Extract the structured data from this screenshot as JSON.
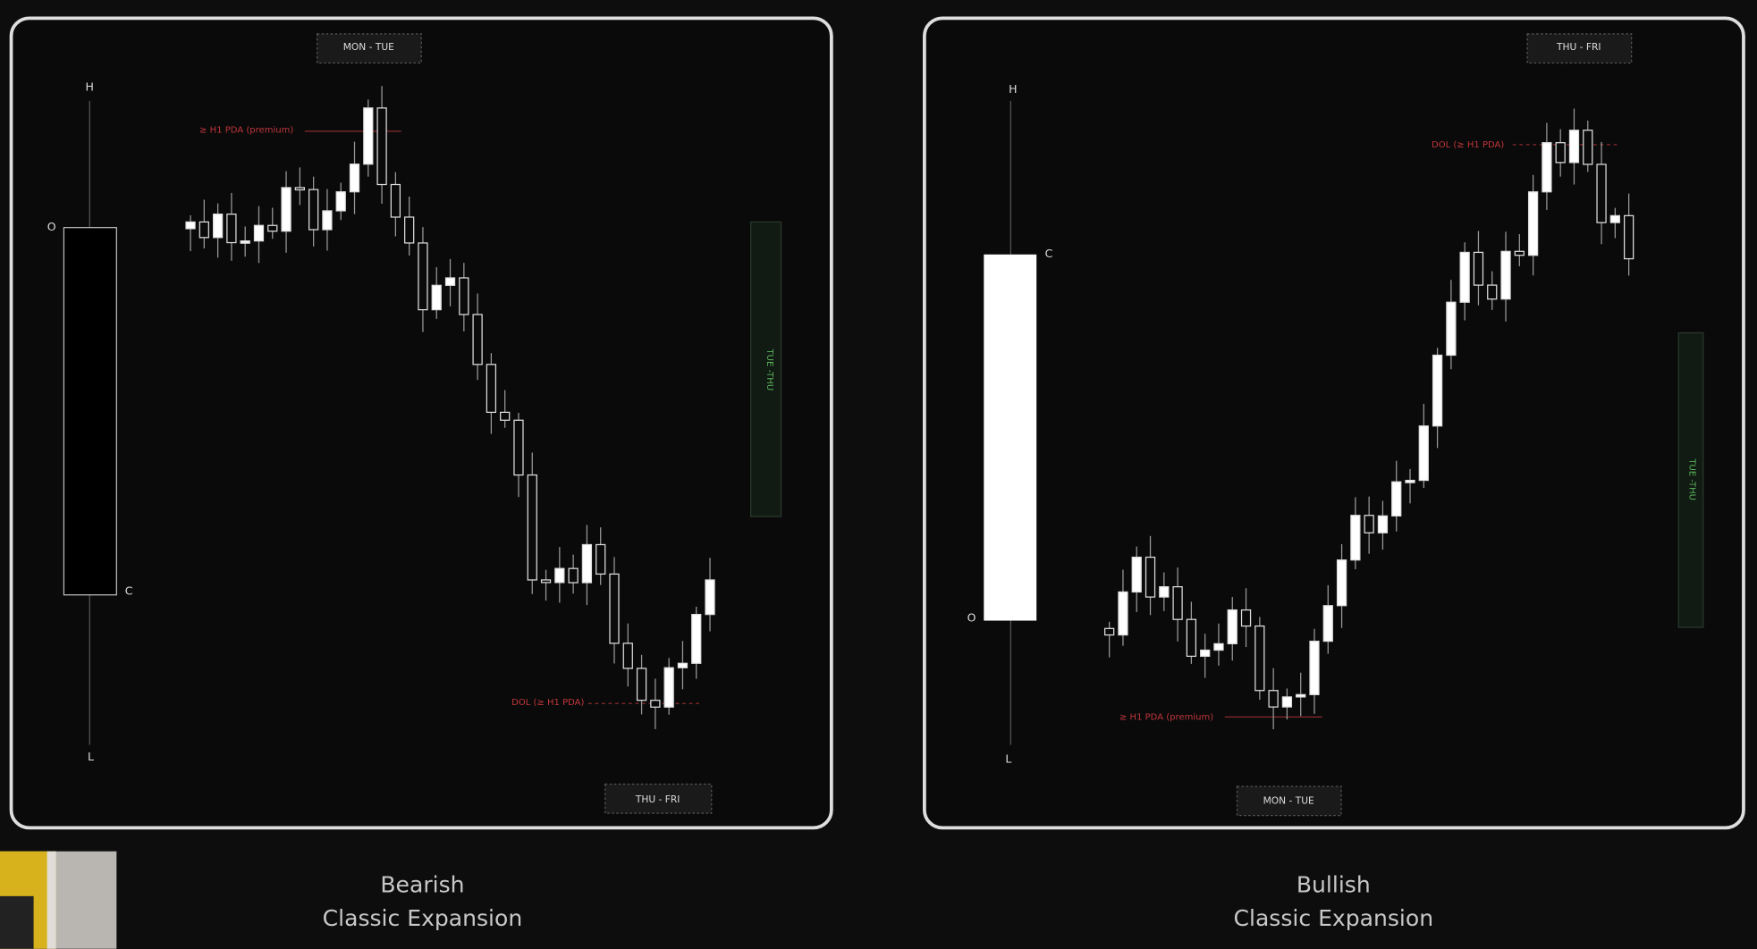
{
  "panels": [
    {
      "tags": {
        "top": "MON - TUE",
        "bottom": "THU - FRI",
        "side": "TUE -THU"
      },
      "ohlc": {
        "high": "H",
        "open": "O",
        "close": "C",
        "low": "L"
      },
      "annotations": {
        "premium": "≥ H1 PDA (premium)",
        "dol": "DOL (≥ H1 PDA)"
      },
      "caption": {
        "title": "Bearish",
        "subtitle": "Classic Expansion"
      }
    },
    {
      "tags": {
        "top": "THU - FRI",
        "bottom": "MON - TUE",
        "side": "TUE -THU"
      },
      "ohlc": {
        "high": "H",
        "open": "O",
        "close": "C",
        "low": "L"
      },
      "annotations": {
        "premium": "≥ H1 PDA (premium)",
        "dol": "DOL (≥ H1 PDA)"
      },
      "caption": {
        "title": "Bullish",
        "subtitle": "Classic Expansion"
      }
    }
  ]
}
